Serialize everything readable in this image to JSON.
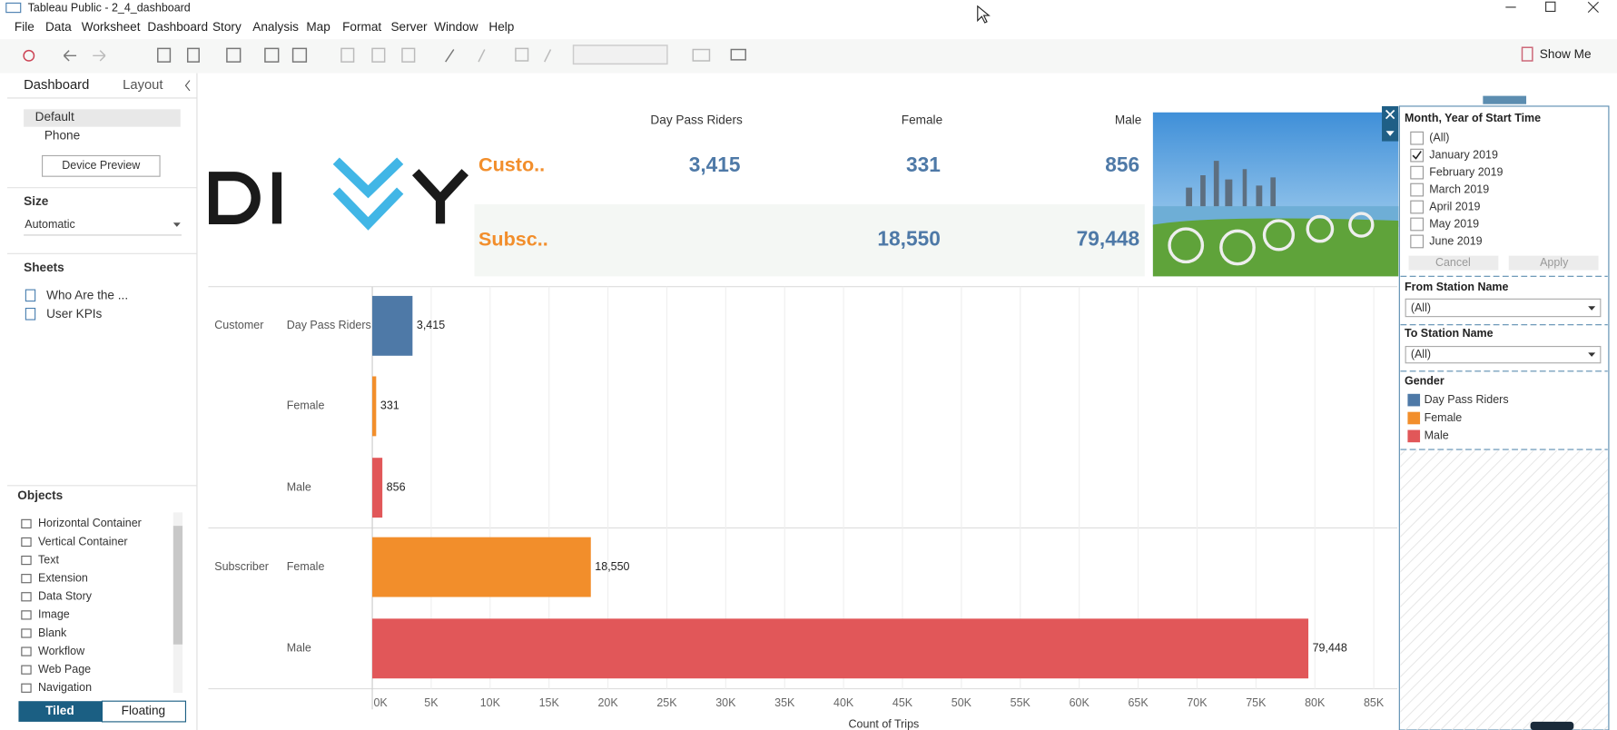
{
  "window": {
    "title": "Tableau Public - 2_4_dashboard"
  },
  "menu": [
    "File",
    "Data",
    "Worksheet",
    "Dashboard",
    "Story",
    "Analysis",
    "Map",
    "Format",
    "Server",
    "Window",
    "Help"
  ],
  "toolbar": {
    "show_me": "Show Me"
  },
  "left_panel": {
    "tabs": [
      "Dashboard",
      "Layout"
    ],
    "devices": [
      "Default",
      "Phone"
    ],
    "device_preview": "Device Preview",
    "size_heading": "Size",
    "size_value": "Automatic",
    "sheets_heading": "Sheets",
    "sheets": [
      "Who Are the ...",
      "User KPIs"
    ],
    "objects_heading": "Objects",
    "objects": [
      "Horizontal Container",
      "Vertical Container",
      "Text",
      "Extension",
      "Data Story",
      "Image",
      "Blank",
      "Workflow",
      "Web Page",
      "Navigation"
    ],
    "layout_modes": [
      "Tiled",
      "Floating"
    ]
  },
  "kpi": {
    "columns": [
      "Day Pass Riders",
      "Female",
      "Male"
    ],
    "rows": [
      [
        "Custo..",
        "3,415",
        "331",
        "856"
      ],
      [
        "Subsc..",
        "18,550",
        "79,448"
      ]
    ]
  },
  "chart": {
    "type": "bar",
    "groups": [
      "Customer",
      "Subscriber"
    ],
    "categories": [
      "Day Pass Riders",
      "Female",
      "Male",
      "Female",
      "Male"
    ],
    "values": [
      3415,
      331,
      856,
      18550,
      79448
    ],
    "value_labels": [
      "3,415",
      "331",
      "856",
      "18,550",
      "79,448"
    ],
    "colors": [
      "#4e79a7",
      "#f28e2b",
      "#e15759",
      "#f28e2b",
      "#e15759"
    ],
    "xlim": [
      0,
      87000
    ],
    "xticks": [
      {
        "value": 0,
        "label": "0K"
      },
      {
        "value": 5000,
        "label": "5K"
      },
      {
        "value": 10000,
        "label": "10K"
      },
      {
        "value": 15000,
        "label": "15K"
      },
      {
        "value": 20000,
        "label": "20K"
      },
      {
        "value": 25000,
        "label": "25K"
      },
      {
        "value": 30000,
        "label": "30K"
      },
      {
        "value": 35000,
        "label": "35K"
      },
      {
        "value": 40000,
        "label": "40K"
      },
      {
        "value": 45000,
        "label": "45K"
      },
      {
        "value": 50000,
        "label": "50K"
      },
      {
        "value": 55000,
        "label": "55K"
      },
      {
        "value": 60000,
        "label": "60K"
      },
      {
        "value": 65000,
        "label": "65K"
      },
      {
        "value": 70000,
        "label": "70K"
      },
      {
        "value": 75000,
        "label": "75K"
      },
      {
        "value": 80000,
        "label": "80K"
      },
      {
        "value": 85000,
        "label": "85K"
      }
    ],
    "grid": true,
    "xlabel": "Count of Trips"
  },
  "filters": {
    "month": {
      "title": "Month, Year of Start Time",
      "options": [
        "(All)",
        "January 2019",
        "February 2019",
        "March 2019",
        "April 2019",
        "May 2019",
        "June 2019"
      ],
      "selected": "January 2019",
      "buttons": [
        "Cancel",
        "Apply"
      ]
    },
    "from_station": {
      "title": "From Station Name",
      "value": "(All)"
    },
    "to_station": {
      "title": "To Station Name",
      "value": "(All)"
    },
    "legend": {
      "title": "Gender",
      "items": [
        {
          "name": "Day Pass Riders",
          "color": "#4e79a7"
        },
        {
          "name": "Female",
          "color": "#f28e2b"
        },
        {
          "name": "Male",
          "color": "#e15759"
        }
      ]
    }
  }
}
